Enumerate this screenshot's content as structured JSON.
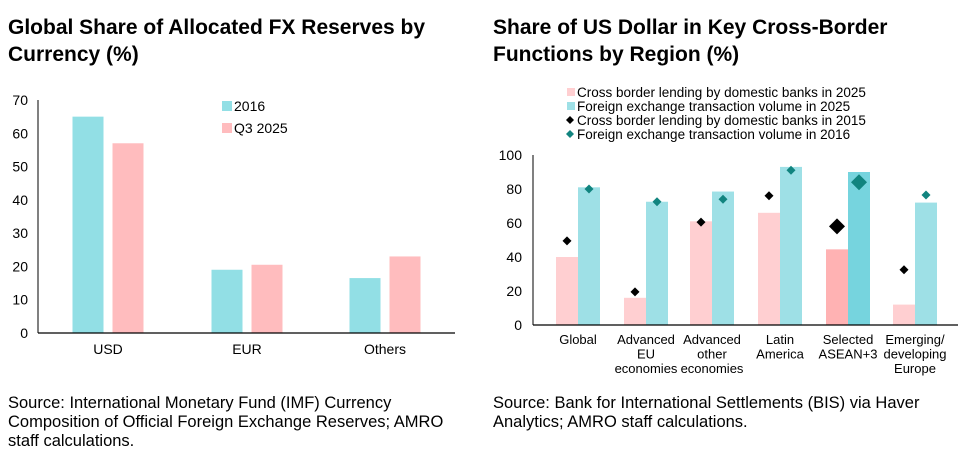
{
  "chart_data": [
    {
      "type": "bar",
      "title": "Global Share of Allocated FX Reserves by Currency (%)",
      "categories": [
        "USD",
        "EUR",
        "Others"
      ],
      "series": [
        {
          "name": "2016",
          "values": [
            65,
            19,
            16.5
          ],
          "color": "#92dfe5"
        },
        {
          "name": "Q3 2025",
          "values": [
            57,
            20.5,
            23
          ],
          "color": "#ffbcbe"
        }
      ],
      "ylim": [
        0,
        70
      ],
      "yticks": [
        0,
        10,
        20,
        30,
        40,
        50,
        60,
        70
      ],
      "grid": false,
      "legend": "top-center",
      "source": "Source: International Monetary Fund (IMF) Currency Composition of Official Foreign Exchange Reserves; AMRO staff calculations."
    },
    {
      "type": "bar",
      "title": "Share of US Dollar in Key Cross-Border Functions by Region (%)",
      "categories": [
        "Global",
        "Advanced EU economies",
        "Advanced other economies",
        "Latin America",
        "Selected ASEAN+3",
        "Emerging/ developing Europe"
      ],
      "category_lines": [
        [
          "Global"
        ],
        [
          "Advanced",
          "EU",
          "economies"
        ],
        [
          "Advanced",
          "other",
          "economies"
        ],
        [
          "Latin",
          "America"
        ],
        [
          "Selected",
          "ASEAN+3"
        ],
        [
          "Emerging/",
          "developing",
          "Europe"
        ]
      ],
      "highlighted_category": "Selected ASEAN+3",
      "series": [
        {
          "name": "Cross border lending by domestic banks in 2025",
          "kind": "bar",
          "values": [
            40,
            16,
            61,
            66,
            44.5,
            12
          ],
          "color": "#ffcfd1",
          "highlight_color": "#ffb2b3"
        },
        {
          "name": "Foreign exchange transaction volume in 2025",
          "kind": "bar",
          "values": [
            81,
            72.5,
            78.5,
            93,
            90,
            72
          ],
          "color": "#9ee0e6",
          "highlight_color": "#76d4de"
        },
        {
          "name": "Cross border lending by domestic banks in 2015",
          "kind": "marker",
          "values": [
            49.5,
            19.5,
            60.5,
            76,
            58,
            32.5
          ],
          "color": "#000000"
        },
        {
          "name": "Foreign exchange transaction volume in 2016",
          "kind": "marker",
          "values": [
            80,
            72.5,
            74,
            91,
            84,
            76.5
          ],
          "color": "#11847f"
        }
      ],
      "ylim": [
        0,
        100
      ],
      "yticks": [
        0,
        20,
        40,
        60,
        80,
        100
      ],
      "grid": false,
      "legend": "top",
      "source": "Source: Bank for International Settlements (BIS) via Haver Analytics; AMRO staff calculations."
    }
  ]
}
